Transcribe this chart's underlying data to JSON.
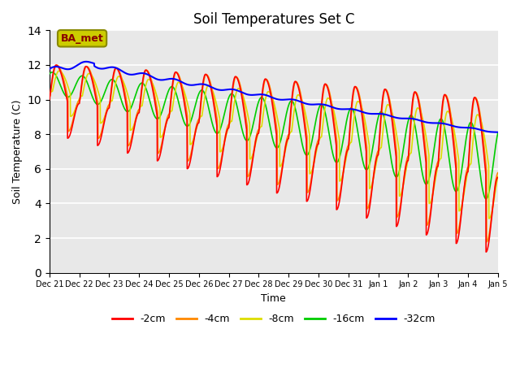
{
  "title": "Soil Temperatures Set C",
  "xlabel": "Time",
  "ylabel": "Soil Temperature (C)",
  "ylim": [
    0,
    14
  ],
  "background_color": "#ffffff",
  "plot_bg_color": "#e8e8e8",
  "grid_color": "#ffffff",
  "annotation_text": "BA_met",
  "annotation_bg": "#cccc00",
  "annotation_border": "#888800",
  "series": {
    "-2cm": {
      "color": "#ff0000",
      "linewidth": 1.2
    },
    "-4cm": {
      "color": "#ff8800",
      "linewidth": 1.2
    },
    "-8cm": {
      "color": "#dddd00",
      "linewidth": 1.2
    },
    "-16cm": {
      "color": "#00cc00",
      "linewidth": 1.2
    },
    "-32cm": {
      "color": "#0000ff",
      "linewidth": 1.5
    }
  },
  "legend_colors": [
    "#ff0000",
    "#ff8800",
    "#dddd00",
    "#00cc00",
    "#0000ff"
  ],
  "legend_labels": [
    "-2cm",
    "-4cm",
    "-8cm",
    "-16cm",
    "-32cm"
  ],
  "n_points": 2160,
  "days_shown": 15
}
